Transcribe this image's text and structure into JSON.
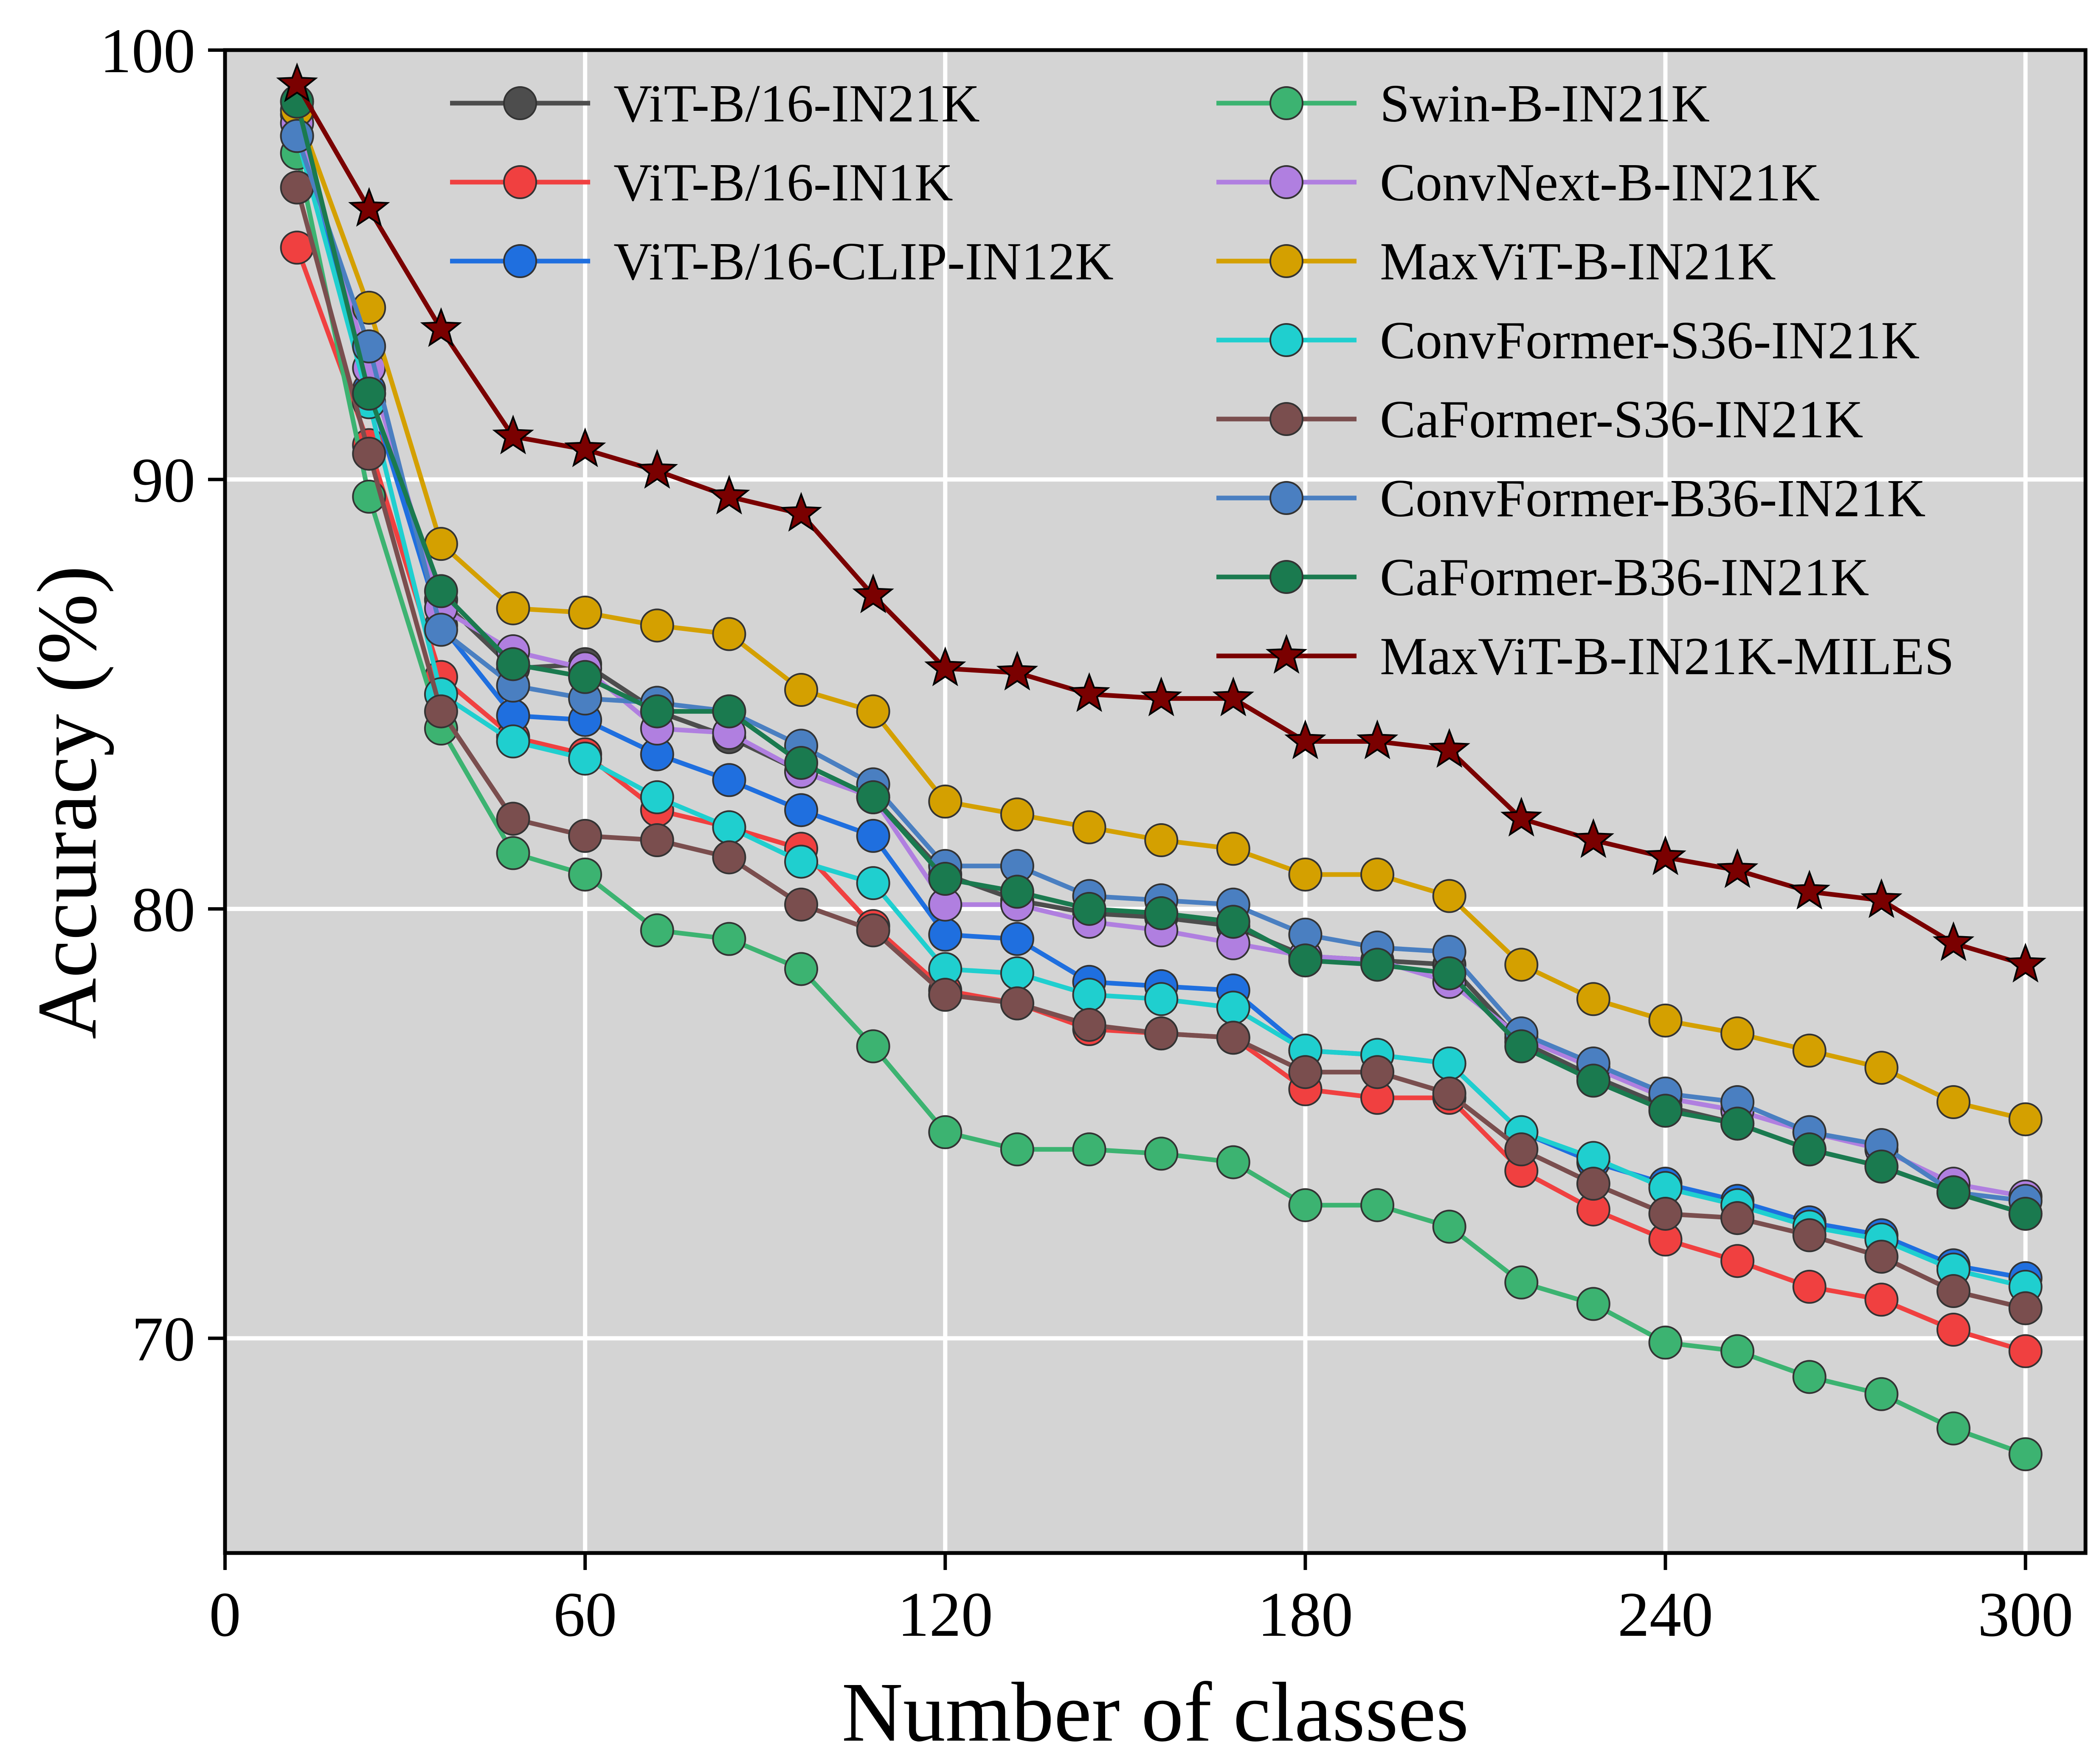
{
  "chart_data": {
    "type": "line",
    "xlabel": "Number of classes",
    "ylabel": "Accuracy (%)",
    "xlim": [
      0,
      310
    ],
    "ylim": [
      65,
      100
    ],
    "xticks": [
      0,
      60,
      120,
      180,
      240,
      300
    ],
    "yticks": [
      70,
      80,
      90,
      100
    ],
    "grid": true,
    "legend_placement": "top-right",
    "x": [
      12,
      24,
      36,
      48,
      60,
      72,
      84,
      96,
      108,
      120,
      132,
      144,
      156,
      168,
      180,
      192,
      204,
      216,
      228,
      240,
      252,
      264,
      276,
      288,
      300
    ],
    "series": [
      {
        "name": "ViT-B/16-IN21K",
        "color": "#4d4d4d",
        "marker": "circle",
        "values": [
          98.8,
          92.0,
          87.2,
          85.6,
          85.7,
          84.6,
          84.0,
          83.2,
          82.6,
          80.8,
          80.2,
          79.9,
          79.8,
          79.6,
          78.9,
          78.8,
          78.7,
          76.9,
          76.1,
          75.4,
          75.0,
          74.4,
          74.0,
          73.4,
          72.9
        ]
      },
      {
        "name": "ViT-B/16-IN1K",
        "color": "#f04040",
        "marker": "circle",
        "values": [
          95.4,
          90.8,
          85.4,
          84.0,
          83.6,
          82.3,
          81.9,
          81.4,
          79.6,
          78.1,
          77.8,
          77.2,
          77.1,
          77.0,
          75.8,
          75.6,
          75.6,
          73.9,
          73.0,
          72.3,
          71.8,
          71.2,
          70.9,
          70.2,
          69.7
        ]
      },
      {
        "name": "ViT-B/16-CLIP-IN12K",
        "color": "#1f6fdf",
        "marker": "circle",
        "values": [
          98.5,
          92.1,
          86.6,
          84.5,
          84.4,
          83.6,
          83.0,
          82.3,
          81.7,
          79.4,
          79.3,
          78.3,
          78.2,
          78.1,
          76.7,
          76.6,
          76.4,
          74.8,
          74.1,
          73.6,
          73.2,
          72.7,
          72.4,
          71.7,
          71.4
        ]
      },
      {
        "name": "Swin-B-IN21K",
        "color": "#3cb371",
        "marker": "circle",
        "values": [
          97.6,
          89.6,
          84.2,
          81.3,
          80.8,
          79.5,
          79.3,
          78.6,
          76.8,
          74.8,
          74.4,
          74.4,
          74.3,
          74.1,
          73.1,
          73.1,
          72.6,
          71.3,
          70.8,
          69.9,
          69.7,
          69.1,
          68.7,
          67.9,
          67.3
        ]
      },
      {
        "name": "ConvNext-B-IN21K",
        "color": "#b07fe0",
        "marker": "circle",
        "values": [
          98.3,
          92.6,
          87.0,
          86.0,
          85.6,
          84.2,
          84.1,
          83.2,
          82.6,
          80.1,
          80.1,
          79.7,
          79.5,
          79.2,
          78.9,
          78.8,
          78.3,
          77.0,
          76.3,
          75.6,
          75.3,
          74.8,
          74.4,
          73.6,
          73.3
        ]
      },
      {
        "name": "MaxViT-B-IN21K",
        "color": "#d4a000",
        "marker": "circle",
        "values": [
          98.6,
          94.0,
          88.5,
          87.0,
          86.9,
          86.6,
          86.4,
          85.1,
          84.6,
          82.5,
          82.2,
          81.9,
          81.6,
          81.4,
          80.8,
          80.8,
          80.3,
          78.7,
          77.9,
          77.4,
          77.1,
          76.7,
          76.3,
          75.5,
          75.1
        ]
      },
      {
        "name": "ConvFormer-S36-IN21K",
        "color": "#1fcfcf",
        "marker": "circle",
        "values": [
          98.0,
          91.8,
          85.0,
          83.9,
          83.5,
          82.6,
          81.9,
          81.1,
          80.6,
          78.6,
          78.5,
          78.0,
          77.9,
          77.7,
          76.7,
          76.6,
          76.4,
          74.8,
          74.2,
          73.5,
          73.1,
          72.6,
          72.3,
          71.6,
          71.2
        ]
      },
      {
        "name": "CaFormer-S36-IN21K",
        "color": "#7a4e4e",
        "marker": "circle",
        "values": [
          96.8,
          90.6,
          84.6,
          82.1,
          81.7,
          81.6,
          81.2,
          80.1,
          79.5,
          78.0,
          77.8,
          77.3,
          77.1,
          77.0,
          76.2,
          76.2,
          75.7,
          74.4,
          73.6,
          72.9,
          72.8,
          72.4,
          71.9,
          71.1,
          70.7
        ]
      },
      {
        "name": "ConvFormer-B36-IN21K",
        "color": "#4a7fc1",
        "marker": "circle",
        "values": [
          98.0,
          93.1,
          86.5,
          85.2,
          84.9,
          84.8,
          84.6,
          83.8,
          82.9,
          81.0,
          81.0,
          80.3,
          80.2,
          80.1,
          79.4,
          79.1,
          79.0,
          77.1,
          76.4,
          75.7,
          75.5,
          74.8,
          74.5,
          73.4,
          73.2
        ]
      },
      {
        "name": "CaFormer-B36-IN21K",
        "color": "#1a7a4f",
        "marker": "circle",
        "values": [
          98.8,
          92.0,
          87.4,
          85.7,
          85.4,
          84.6,
          84.6,
          83.4,
          82.6,
          80.7,
          80.4,
          80.0,
          79.9,
          79.7,
          78.8,
          78.7,
          78.5,
          76.8,
          76.0,
          75.3,
          75.0,
          74.4,
          74.0,
          73.4,
          72.9
        ]
      },
      {
        "name": "MaxViT-B-IN21K-MILES",
        "color": "#7a0000",
        "marker": "star",
        "values": [
          99.2,
          96.3,
          93.5,
          91.0,
          90.7,
          90.2,
          89.6,
          89.2,
          87.3,
          85.6,
          85.5,
          85.0,
          84.9,
          84.9,
          83.9,
          83.9,
          83.7,
          82.1,
          81.6,
          81.2,
          80.9,
          80.4,
          80.2,
          79.2,
          78.7
        ]
      }
    ]
  }
}
